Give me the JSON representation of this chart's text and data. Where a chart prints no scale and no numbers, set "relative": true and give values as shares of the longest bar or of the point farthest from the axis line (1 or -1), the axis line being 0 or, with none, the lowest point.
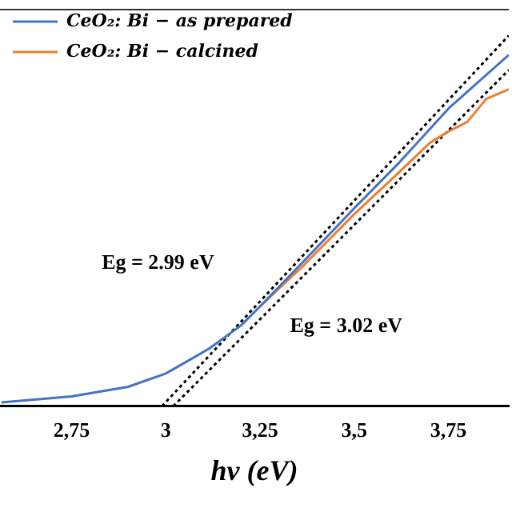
{
  "chart_data": {
    "type": "line",
    "relative": true,
    "xlabel": "hν (eV)",
    "xlim": [
      2.56,
      3.91
    ],
    "xticks": [
      {
        "value": 2.75,
        "label": "2,75"
      },
      3,
      {
        "value": 3.25,
        "label": "3,25"
      },
      {
        "value": 3.5,
        "label": "3,5"
      },
      {
        "value": 3.75,
        "label": "3,75"
      }
    ],
    "series": [
      {
        "name": "CeO₂: Bi − as prepared",
        "color": "#4472c4",
        "x": [
          2.564,
          2.75,
          2.9,
          3.0,
          3.115,
          3.2,
          3.25,
          3.364,
          3.5,
          3.62,
          3.75,
          3.91
        ],
        "values": [
          0.01,
          0.026,
          0.052,
          0.088,
          0.155,
          0.218,
          0.269,
          0.389,
          0.534,
          0.658,
          0.803,
          0.948
        ]
      },
      {
        "name": "CeO₂: Bi − calcined",
        "color": "#ed7d31",
        "x": [
          3.25,
          3.364,
          3.5,
          3.62,
          3.7,
          3.75,
          3.8,
          3.85,
          3.91
        ],
        "values": [
          0.269,
          0.378,
          0.518,
          0.632,
          0.71,
          0.741,
          0.767,
          0.829,
          0.855
        ]
      },
      {
        "color": "#000000",
        "line_style": "dotted",
        "x": [
          2.99,
          3.91
        ],
        "values": [
          0,
          1
        ]
      },
      {
        "color": "#000000",
        "line_style": "dotted",
        "x": [
          3.02,
          3.91
        ],
        "values": [
          0,
          0.907
        ]
      }
    ],
    "annotations": [
      "Eg = 2.99 eV",
      "Eg = 3.02 eV"
    ],
    "legend": "top left",
    "grid": false,
    "marker": "none"
  }
}
